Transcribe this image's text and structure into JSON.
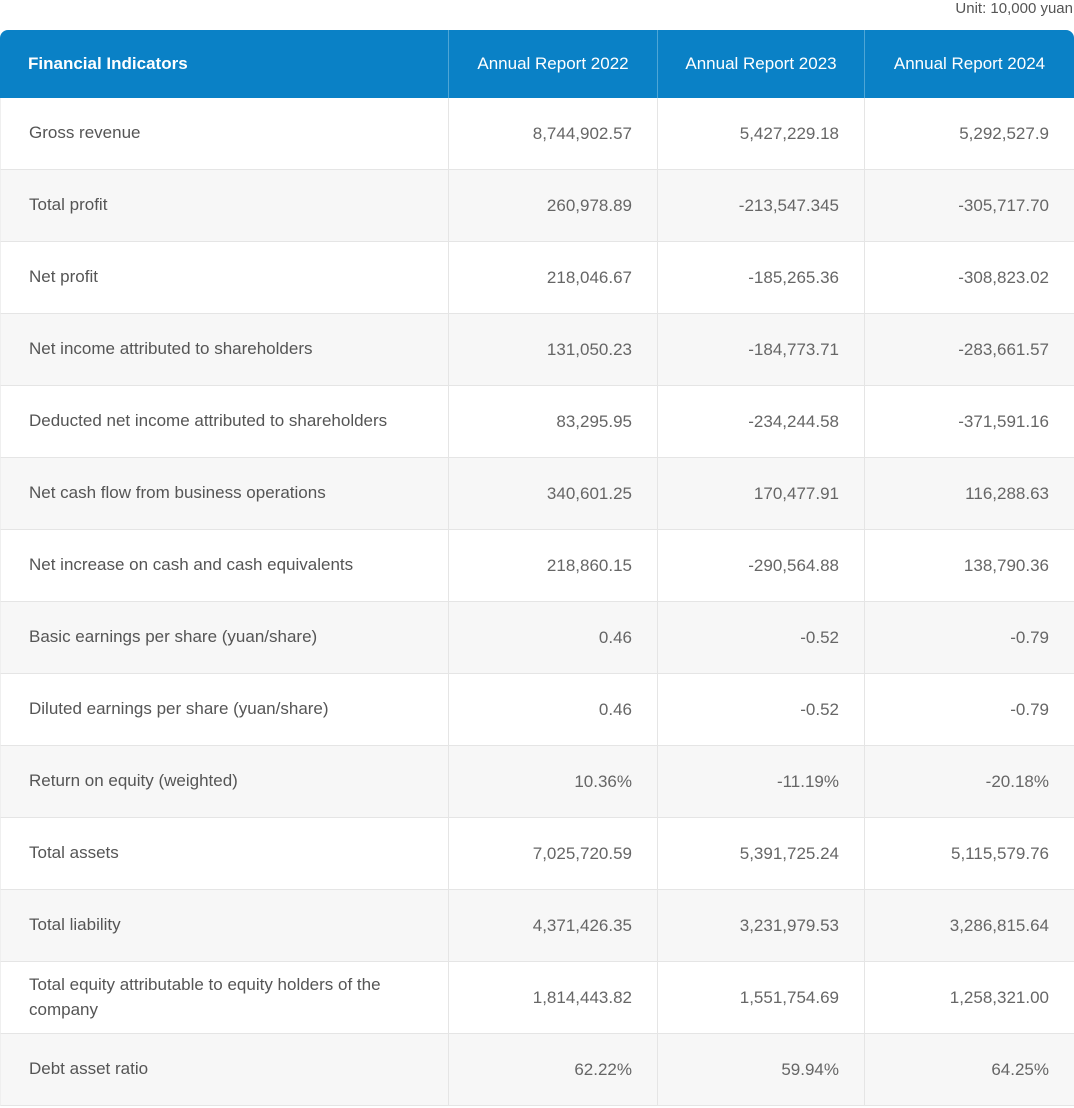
{
  "page": {
    "unit_label": "Unit: 10,000 yuan"
  },
  "colors": {
    "header_background": "#0a81c6",
    "header_text": "#ffffff",
    "header_divider": "#4ea6d6",
    "row_stripe": "#f7f7f7",
    "grid_line": "#e5e5e5",
    "label_text": "#555555",
    "value_text": "#666666"
  },
  "table": {
    "columns": [
      "Financial Indicators",
      "Annual Report 2022",
      "Annual Report 2023",
      "Annual Report 2024"
    ],
    "rows": [
      {
        "label": "Gross revenue",
        "values": [
          "8,744,902.57",
          "5,427,229.18",
          "5,292,527.9"
        ]
      },
      {
        "label": "Total profit",
        "values": [
          "260,978.89",
          "-213,547.345",
          "-305,717.70"
        ]
      },
      {
        "label": "Net profit",
        "values": [
          "218,046.67",
          "-185,265.36",
          "-308,823.02"
        ]
      },
      {
        "label": "Net income attributed to shareholders",
        "values": [
          "131,050.23",
          "-184,773.71",
          "-283,661.57"
        ]
      },
      {
        "label": "Deducted net income attributed to shareholders",
        "values": [
          "83,295.95",
          "-234,244.58",
          "-371,591.16"
        ]
      },
      {
        "label": "Net cash flow from business operations",
        "values": [
          "340,601.25",
          "170,477.91",
          "116,288.63"
        ]
      },
      {
        "label": "Net increase on cash and cash equivalents",
        "values": [
          "218,860.15",
          "-290,564.88",
          "138,790.36"
        ]
      },
      {
        "label": "Basic earnings per share (yuan/share)",
        "values": [
          "0.46",
          "-0.52",
          "-0.79"
        ]
      },
      {
        "label": "Diluted earnings per share (yuan/share)",
        "values": [
          "0.46",
          "-0.52",
          "-0.79"
        ]
      },
      {
        "label": "Return on equity (weighted)",
        "values": [
          "10.36%",
          "-11.19%",
          "-20.18%"
        ]
      },
      {
        "label": "Total assets",
        "values": [
          "7,025,720.59",
          "5,391,725.24",
          "5,115,579.76"
        ]
      },
      {
        "label": "Total liability",
        "values": [
          "4,371,426.35",
          "3,231,979.53",
          "3,286,815.64"
        ]
      },
      {
        "label": "Total equity attributable to equity holders of the company",
        "values": [
          "1,814,443.82",
          "1,551,754.69",
          "1,258,321.00"
        ]
      },
      {
        "label": "Debt asset ratio",
        "values": [
          "62.22%",
          "59.94%",
          "64.25%"
        ]
      }
    ]
  },
  "chart_data": {
    "type": "table",
    "title": "Financial Indicators",
    "unit": "Unit: 10,000 yuan",
    "columns": [
      "Financial Indicators",
      "Annual Report 2022",
      "Annual Report 2023",
      "Annual Report 2024"
    ],
    "series": [
      {
        "name": "Annual Report 2022",
        "values": [
          8744902.57,
          260978.89,
          218046.67,
          131050.23,
          83295.95,
          340601.25,
          218860.15,
          0.46,
          0.46,
          "10.36%",
          7025720.59,
          4371426.35,
          1814443.82,
          "62.22%"
        ]
      },
      {
        "name": "Annual Report 2023",
        "values": [
          5427229.18,
          -213547.345,
          -185265.36,
          -184773.71,
          -234244.58,
          170477.91,
          -290564.88,
          -0.52,
          -0.52,
          "-11.19%",
          5391725.24,
          3231979.53,
          1551754.69,
          "59.94%"
        ]
      },
      {
        "name": "Annual Report 2024",
        "values": [
          5292527.9,
          -305717.7,
          -308823.02,
          -283661.57,
          -371591.16,
          116288.63,
          138790.36,
          -0.79,
          -0.79,
          "-20.18%",
          5115579.76,
          3286815.64,
          1258321.0,
          "64.25%"
        ]
      }
    ],
    "categories": [
      "Gross revenue",
      "Total profit",
      "Net profit",
      "Net income attributed to shareholders",
      "Deducted net income attributed to shareholders",
      "Net cash flow from business operations",
      "Net increase on cash and cash equivalents",
      "Basic earnings per share (yuan/share)",
      "Diluted earnings per share (yuan/share)",
      "Return on equity (weighted)",
      "Total assets",
      "Total liability",
      "Total equity attributable to equity holders of the company",
      "Debt asset ratio"
    ]
  }
}
